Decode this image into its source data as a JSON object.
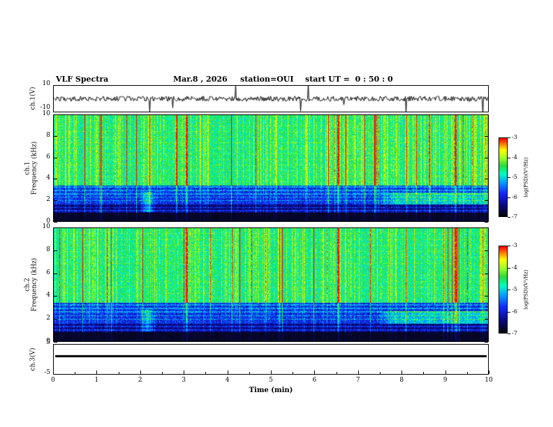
{
  "title": {
    "main": "VLF Spectra",
    "date": "Mar.8 , 2026",
    "station": "station=OUI",
    "start_ut": "start UT =  0 : 50 : 0"
  },
  "xaxis": {
    "label": "Time (min)",
    "ticks": [
      "0",
      "1",
      "2",
      "3",
      "4",
      "5",
      "6",
      "7",
      "8",
      "9",
      "10"
    ],
    "range_min": [
      0,
      10
    ]
  },
  "panels": {
    "wave1": {
      "label": "ch.1(V)",
      "ytop": "10",
      "ybottom": "-10"
    },
    "spec1": {
      "channel": "ch.1",
      "ylabel": "Frequency (kHz)",
      "yticks": [
        "10",
        "8",
        "6",
        "4",
        "2",
        "0"
      ]
    },
    "spec2": {
      "channel": "ch.2",
      "ylabel": "Frequency (kHz)",
      "yticks": [
        "10",
        "8",
        "6",
        "4",
        "2",
        "0"
      ]
    },
    "wave3": {
      "label": "ch.3(V)",
      "ytop": "5",
      "ybottom": "-5"
    }
  },
  "colorbar": {
    "label": "log(PSD)(V²/Hz)",
    "ticks": [
      "-3",
      "-4",
      "-5",
      "-6",
      "-7"
    ],
    "range_log_psd": [
      -7,
      -3
    ]
  },
  "chart_data": {
    "type": "heatmap",
    "title": "VLF Spectra",
    "date": "Mar.8 , 2026",
    "station": "OUI",
    "start_ut": "0 : 50 : 0",
    "xlabel": "Time (min)",
    "x_range_min": [
      0,
      10
    ],
    "panels": [
      {
        "name": "ch.1 waveform",
        "y_label": "ch.1(V)",
        "y_range_V": [
          -10,
          10
        ],
        "description": "continuous broadband noise trace around 0 V with frequent impulsive sferic spikes"
      },
      {
        "name": "ch.1 spectrogram",
        "y_label": "Frequency (kHz)",
        "y_range_kHz": [
          0,
          10
        ],
        "z_label": "log(PSD)(V²/Hz)",
        "z_range": [
          -7,
          -3
        ],
        "description": "green broadband hiss ~-4.5 above 3.5 kHz with dense vertical sferic streaks up to -3 (yellow/red); dark blue band 1-3.5 kHz with horizontal harmonic lines; near -7 (black) below 0.9 kHz; cyan emission band 1.6-2.7 kHz after ~7.4 min; disturbance near 2.1 min; strong streaks near 3.0, 6.5 and 9.2 min"
      },
      {
        "name": "ch.2 spectrogram",
        "y_label": "Frequency (kHz)",
        "y_range_kHz": [
          0,
          10
        ],
        "z_label": "log(PSD)(V²/Hz)",
        "z_range": [
          -7,
          -3
        ],
        "description": "same structure as ch.1 spectrogram: green hiss above 3.5 kHz, vertical sferic streaks, dark low-frequency band with harmonic lines, late-time cyan band near 2 kHz"
      },
      {
        "name": "ch.3 waveform",
        "y_label": "ch.3(V)",
        "y_range_V": [
          -5,
          5
        ],
        "description": "constant flat line near 0 V for the whole 10 minutes"
      }
    ],
    "render": {
      "seed1": 17,
      "seed2": 91,
      "colormap": [
        [
          0.0,
          [
            5,
            5,
            5
          ]
        ],
        [
          0.15,
          [
            10,
            10,
            130
          ]
        ],
        [
          0.3,
          [
            20,
            40,
            255
          ]
        ],
        [
          0.45,
          [
            0,
            170,
            255
          ]
        ],
        [
          0.55,
          [
            0,
            255,
            190
          ]
        ],
        [
          0.65,
          [
            40,
            220,
            60
          ]
        ],
        [
          0.75,
          [
            160,
            255,
            40
          ]
        ],
        [
          0.85,
          [
            255,
            255,
            0
          ]
        ],
        [
          0.93,
          [
            255,
            120,
            0
          ]
        ],
        [
          1.0,
          [
            255,
            0,
            0
          ]
        ]
      ],
      "bands": [
        {
          "fmin": 0.0,
          "fmax": 0.85,
          "level": 0.04,
          "noise": 0.03,
          "weight": 0.15
        },
        {
          "fmin": 0.85,
          "fmax": 1.7,
          "level": 0.14,
          "noise": 0.09,
          "weight": 0.45
        },
        {
          "fmin": 1.7,
          "fmax": 3.4,
          "level": 0.28,
          "noise": 0.12,
          "weight": 0.55
        },
        {
          "fmin": 3.4,
          "fmax": 10.1,
          "level": 0.6,
          "noise": 0.11,
          "weight": 1.0
        }
      ],
      "hline_spacing_khz": 0.32,
      "hline_boost": 0.14,
      "streak_strong_prob": 0.045,
      "streak_weak_prob": 0.3,
      "strong_streaks_min": [
        3.05,
        6.55,
        9.25
      ],
      "blob": {
        "t": 2.15,
        "halfwidth": 0.2,
        "fmin": 0.9,
        "fmax": 2.8,
        "boost": 0.22
      },
      "late_band": {
        "tmin": 7.4,
        "fmin": 1.6,
        "fmax": 2.7,
        "boost": 0.2
      },
      "wave": {
        "base_amp": 0.1,
        "spike_prob": 0.02,
        "spike_amp": 0.75
      },
      "ch3_line_frac": 0.39
    }
  }
}
